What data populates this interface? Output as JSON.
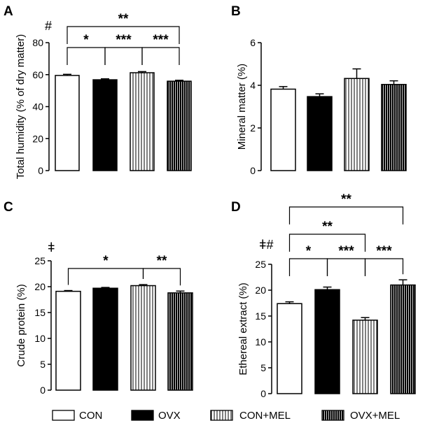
{
  "chart_data": [
    {
      "panel": "A",
      "type": "bar",
      "ylabel": "Total humidity (% of dry matter)",
      "ylim": [
        0,
        80
      ],
      "yticks": [
        0,
        20,
        40,
        60,
        80
      ],
      "categories": [
        "CON",
        "OVX",
        "CON+MEL",
        "OVX+MEL"
      ],
      "values": [
        59.5,
        56.8,
        61.2,
        55.9
      ],
      "errors": [
        0.7,
        0.6,
        0.7,
        0.6
      ],
      "symbols": "#",
      "brackets": [
        {
          "from": 0,
          "to": 1,
          "label": "*"
        },
        {
          "from": 1,
          "to": 2,
          "label": "***"
        },
        {
          "from": 2,
          "to": 3,
          "label": "***"
        },
        {
          "from": 0,
          "to": 3,
          "label": "**"
        }
      ]
    },
    {
      "panel": "B",
      "type": "bar",
      "ylabel": "Mineral matter (%)",
      "ylim": [
        0,
        6
      ],
      "yticks": [
        0,
        2,
        4,
        6
      ],
      "categories": [
        "CON",
        "OVX",
        "CON+MEL",
        "OVX+MEL"
      ],
      "values": [
        3.82,
        3.47,
        4.32,
        4.04
      ],
      "errors": [
        0.12,
        0.13,
        0.45,
        0.17
      ],
      "symbols": "",
      "brackets": []
    },
    {
      "panel": "C",
      "type": "bar",
      "ylabel": "Crude protein (%)",
      "ylim": [
        0,
        25
      ],
      "yticks": [
        0,
        5,
        10,
        15,
        20,
        25
      ],
      "categories": [
        "CON",
        "OVX",
        "CON+MEL",
        "OVX+MEL"
      ],
      "values": [
        19.1,
        19.7,
        20.2,
        18.8
      ],
      "errors": [
        0.15,
        0.15,
        0.2,
        0.35
      ],
      "symbols": "ǂ",
      "brackets": [
        {
          "from": 0,
          "to": 2,
          "label": "*"
        },
        {
          "from": 2,
          "to": 3,
          "label": "**"
        }
      ]
    },
    {
      "panel": "D",
      "type": "bar",
      "ylabel": "Ethereal extract (%)",
      "ylim": [
        0,
        25
      ],
      "yticks": [
        0,
        5,
        10,
        15,
        20,
        25
      ],
      "categories": [
        "CON",
        "OVX",
        "CON+MEL",
        "OVX+MEL"
      ],
      "values": [
        17.4,
        20.1,
        14.2,
        21.0
      ],
      "errors": [
        0.35,
        0.5,
        0.5,
        1.0
      ],
      "symbols": "ǂ#",
      "brackets": [
        {
          "from": 0,
          "to": 1,
          "label": "*"
        },
        {
          "from": 1,
          "to": 2,
          "label": "***"
        },
        {
          "from": 2,
          "to": 3,
          "label": "***"
        },
        {
          "from": 0,
          "to": 2,
          "label": "**"
        },
        {
          "from": 0,
          "to": 3,
          "label": "**"
        }
      ]
    }
  ],
  "legend": [
    {
      "label": "CON",
      "fill": "white"
    },
    {
      "label": "OVX",
      "fill": "black"
    },
    {
      "label": "CON+MEL",
      "fill": "vertical-lines"
    },
    {
      "label": "OVX+MEL",
      "fill": "black-vertical-lines"
    }
  ],
  "colors": {
    "bar_edge": "#000000",
    "bar_solid": "#000000",
    "background": "#ffffff"
  }
}
